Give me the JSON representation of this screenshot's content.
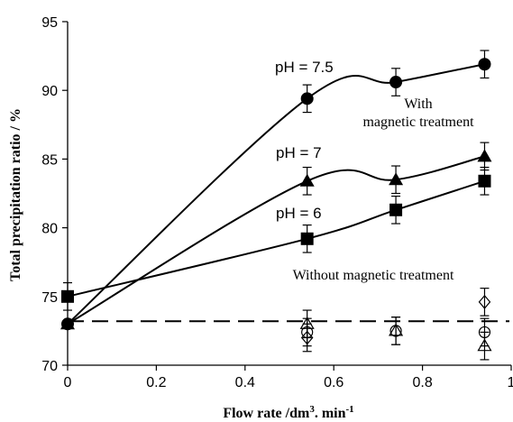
{
  "chart_data": {
    "type": "line",
    "xlabel_main": "Flow rate /dm",
    "xlabel_sup": "3",
    "xlabel_tail": ". min",
    "xlabel_sup2": "-1",
    "ylabel": "Total precipitation ratio / %",
    "xlim": [
      0,
      1
    ],
    "ylim": [
      70,
      95
    ],
    "xticks": [
      0,
      0.2,
      0.4,
      0.6,
      0.8,
      1
    ],
    "xtick_labels": [
      "0",
      "0.2",
      "0.4",
      "0.6",
      "0.8",
      "1"
    ],
    "yticks": [
      70,
      75,
      80,
      85,
      90,
      95
    ],
    "ytick_labels": [
      "70",
      "75",
      "80",
      "85",
      "90",
      "95"
    ],
    "grid": false,
    "series": [
      {
        "name": "pH = 7.5",
        "marker": "circle",
        "x": [
          0,
          0.54,
          0.74,
          0.94
        ],
        "y": [
          73,
          89.4,
          90.6,
          91.9
        ],
        "err": [
          0,
          1.0,
          1.0,
          1.0
        ]
      },
      {
        "name": "pH = 7",
        "marker": "triangle",
        "x": [
          0,
          0.54,
          0.74,
          0.94
        ],
        "y": [
          73,
          83.4,
          83.5,
          85.2
        ],
        "err": [
          0,
          1.0,
          1.0,
          1.0
        ]
      },
      {
        "name": "pH = 6",
        "marker": "square",
        "x": [
          0,
          0.54,
          0.74,
          0.94
        ],
        "y": [
          75,
          79.2,
          81.3,
          83.4
        ],
        "err": [
          1.0,
          1.0,
          1.0,
          1.0
        ]
      }
    ],
    "without_treatment": {
      "reference_y": 73.2,
      "points": [
        {
          "marker": "triangle-open",
          "x": 0.54,
          "y": 73.0
        },
        {
          "marker": "circle-open",
          "x": 0.54,
          "y": 72.4
        },
        {
          "marker": "diamond-open",
          "x": 0.54,
          "y": 72.0
        },
        {
          "marker": "circle-open",
          "x": 0.74,
          "y": 72.5
        },
        {
          "marker": "triangle-open",
          "x": 0.74,
          "y": 72.5
        },
        {
          "marker": "diamond-open",
          "x": 0.94,
          "y": 74.6
        },
        {
          "marker": "circle-open",
          "x": 0.94,
          "y": 72.4
        },
        {
          "marker": "triangle-open",
          "x": 0.94,
          "y": 71.4
        }
      ],
      "err": 1.0
    },
    "annotations": {
      "ph75": "pH = 7.5",
      "ph7": "pH = 7",
      "ph6": "pH = 6",
      "with_line1": "With",
      "with_line2": "magnetic treatment",
      "without": "Without magnetic treatment"
    }
  }
}
